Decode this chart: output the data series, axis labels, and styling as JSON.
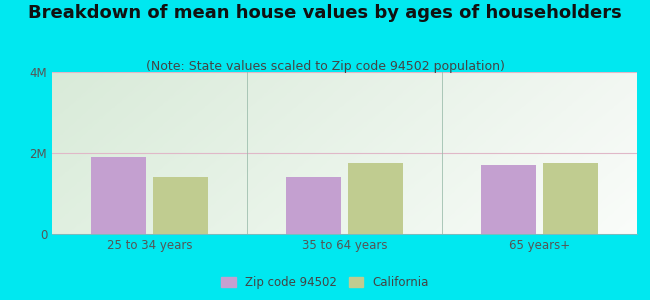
{
  "title": "Breakdown of mean house values by ages of householders",
  "subtitle": "(Note: State values scaled to Zip code 94502 population)",
  "categories": [
    "25 to 34 years",
    "35 to 64 years",
    "65 years+"
  ],
  "zip_values": [
    1900000,
    1400000,
    1700000
  ],
  "ca_values": [
    1400000,
    1750000,
    1750000
  ],
  "zip_color": "#c4a0d0",
  "ca_color": "#c0cc90",
  "ylim": [
    0,
    4000000
  ],
  "yticks": [
    0,
    2000000,
    4000000
  ],
  "ytick_labels": [
    "0",
    "2M",
    "4M"
  ],
  "background_outer": "#00e8f0",
  "grid_color": "#e0b8c8",
  "zip_label": "Zip code 94502",
  "ca_label": "California",
  "bar_width": 0.28,
  "title_fontsize": 13,
  "subtitle_fontsize": 9
}
